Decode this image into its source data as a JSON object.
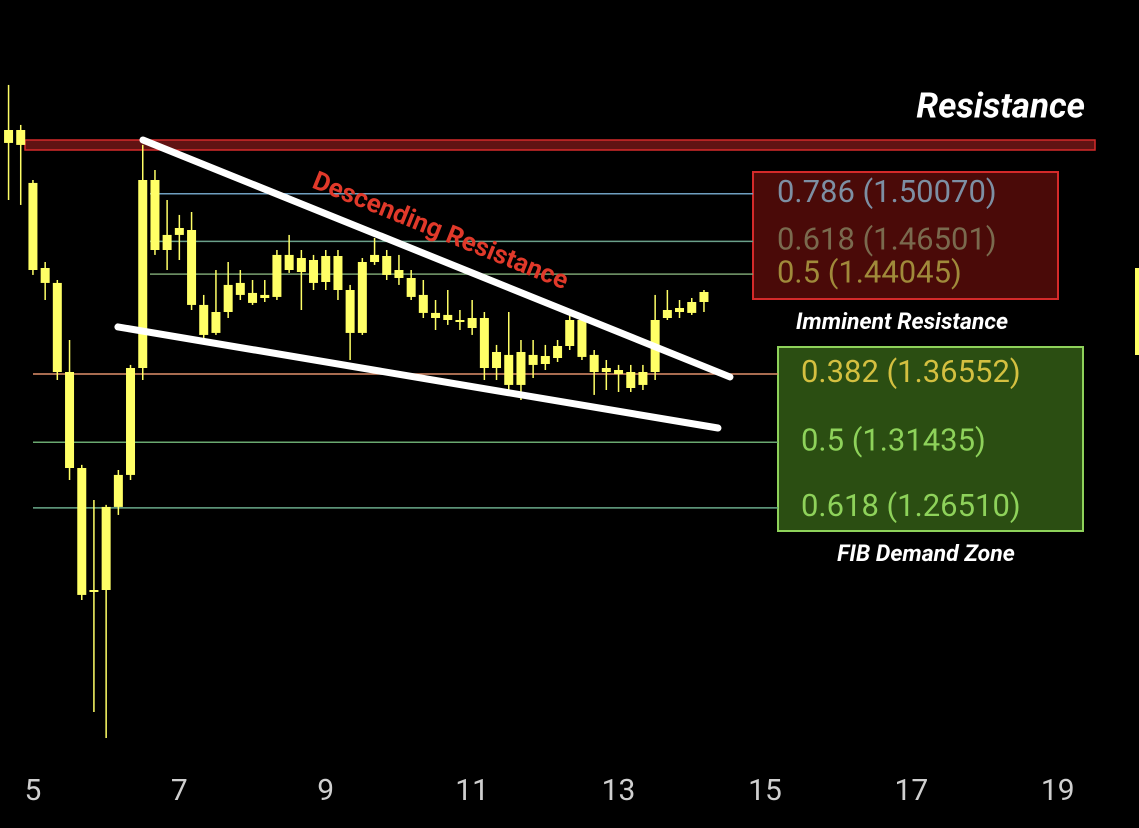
{
  "chart_data": {
    "type": "candlestick",
    "x": [
      4.667,
      4.833,
      5,
      5.167,
      5.333,
      5.5,
      5.667,
      5.833,
      6,
      6.167,
      6.333,
      6.5,
      6.667,
      6.833,
      7,
      7.167,
      7.333,
      7.5,
      7.667,
      7.833,
      8,
      8.167,
      8.333,
      8.5,
      8.667,
      8.833,
      9,
      9.167,
      9.333,
      9.5,
      9.667,
      9.833,
      10,
      10.167,
      10.333,
      10.5,
      10.667,
      10.833,
      11,
      11.167,
      11.333,
      11.5,
      11.667,
      11.833,
      12,
      12.167,
      12.333,
      12.5,
      12.667,
      12.833,
      13,
      13.167,
      13.333,
      13.5,
      13.667,
      13.833,
      14,
      14.167
    ],
    "open": [
      1.5388,
      1.5373,
      1.5088,
      1.445,
      1.4338,
      1.367,
      1.295,
      1.202,
      1.2035,
      1.2658,
      1.2898,
      1.37,
      1.511,
      1.4585,
      1.4698,
      1.4735,
      1.4173,
      1.3963,
      1.412,
      1.4248,
      1.4263,
      1.4225,
      1.4233,
      1.4548,
      1.4525,
      1.451,
      1.4345,
      1.454,
      1.4285,
      1.3963,
      1.4495,
      1.454,
      1.4435,
      1.4375,
      1.4248,
      1.4113,
      1.4098,
      1.406,
      1.4075,
      1.4075,
      1.382,
      1.3798,
      1.3573,
      1.3798,
      1.379,
      1.3775,
      1.3865,
      1.406,
      1.3798,
      1.37,
      1.3685,
      1.367,
      1.3573,
      1.367,
      1.4075,
      1.412,
      1.4113,
      1.4195
    ],
    "high": [
      1.5823,
      1.5523,
      1.511,
      1.4495,
      1.436,
      1.391,
      1.2973,
      1.271,
      1.2673,
      1.2935,
      1.3723,
      1.5373,
      1.5185,
      1.496,
      1.4848,
      1.487,
      1.4248,
      1.4435,
      1.4495,
      1.4435,
      1.436,
      1.436,
      1.4585,
      1.4698,
      1.4585,
      1.4548,
      1.4585,
      1.4585,
      1.4323,
      1.4525,
      1.4675,
      1.4585,
      1.4548,
      1.4435,
      1.436,
      1.421,
      1.4285,
      1.4135,
      1.421,
      1.412,
      1.3873,
      1.412,
      1.391,
      1.391,
      1.3873,
      1.391,
      1.4098,
      1.4098,
      1.3835,
      1.376,
      1.3723,
      1.3723,
      1.3723,
      1.4248,
      1.4285,
      1.421,
      1.4225,
      1.4285
    ],
    "low": [
      1.496,
      1.4923,
      1.4398,
      1.421,
      1.361,
      1.286,
      1.196,
      1.112,
      1.0925,
      1.2598,
      1.286,
      1.361,
      1.4548,
      1.4435,
      1.451,
      1.4135,
      1.391,
      1.3948,
      1.4075,
      1.421,
      1.4173,
      1.4195,
      1.421,
      1.4413,
      1.4135,
      1.4285,
      1.4285,
      1.421,
      1.376,
      1.3948,
      1.4473,
      1.436,
      1.4323,
      1.421,
      1.4075,
      1.3985,
      1.4023,
      1.3985,
      1.3948,
      1.361,
      1.361,
      1.3535,
      1.346,
      1.3625,
      1.3685,
      1.3745,
      1.3835,
      1.376,
      1.3498,
      1.3535,
      1.352,
      1.352,
      1.3535,
      1.361,
      1.406,
      1.4075,
      1.4098,
      1.412
    ],
    "close": [
      1.5485,
      1.5485,
      1.4435,
      1.4338,
      1.367,
      1.295,
      1.1998,
      1.2035,
      1.2658,
      1.2898,
      1.37,
      1.511,
      1.4585,
      1.4698,
      1.475,
      1.4173,
      1.3948,
      1.412,
      1.4323,
      1.4338,
      1.4188,
      1.4248,
      1.4548,
      1.4435,
      1.442,
      1.4338,
      1.454,
      1.4285,
      1.3963,
      1.4495,
      1.4548,
      1.4398,
      1.4375,
      1.4233,
      1.4113,
      1.4075,
      1.406,
      1.4045,
      1.4,
      1.37,
      1.37,
      1.3573,
      1.382,
      1.3723,
      1.373,
      1.3865,
      1.406,
      1.3783,
      1.367,
      1.367,
      1.3655,
      1.355,
      1.367,
      1.406,
      1.4135,
      1.415,
      1.4195,
      1.427
    ],
    "color": "#ffff66",
    "xlim": [
      4.55,
      20.11
    ],
    "xticks": [
      5,
      7,
      9,
      11,
      13,
      15,
      17,
      19
    ],
    "ylim": [
      1.076,
      1.646
    ],
    "resistance": {
      "label": "Resistance",
      "range": [
        1.5335,
        1.541
      ],
      "color": "#d42a2a"
    },
    "trendlines": [
      {
        "label": "Descending Resistance",
        "x": [
          6.503,
          14.522
        ],
        "y": [
          1.541,
          1.3633
        ],
        "color": "#ffffff"
      },
      {
        "x": [
          6.161,
          14.358
        ],
        "y": [
          1.4008,
          1.325
        ],
        "color": "#ffffff"
      }
    ],
    "fib_upper": {
      "label": "Imminent Resistance",
      "levels": [
        {
          "label": "0.786 (1.50070)",
          "value": 1.5007,
          "color": "#7d8fa3",
          "line": "#6f9fc0"
        },
        {
          "label": "0.618 (1.46501)",
          "value": 1.46501,
          "color": "#7a6a4e",
          "line": "#6aa08a"
        },
        {
          "label": "0.5 (1.44045)",
          "value": 1.44045,
          "color": "#a08a3a",
          "line": "#7aa070"
        }
      ]
    },
    "fib_lower": {
      "label": "FIB Demand Zone",
      "levels": [
        {
          "label": "0.382 (1.36552)",
          "value": 1.36552,
          "color": "#d4c040",
          "line": "#e0906a"
        },
        {
          "label": "0.5 (1.31435)",
          "value": 1.31435,
          "color": "#8ed25a",
          "line": "#6aa870"
        },
        {
          "label": "0.618 (1.26510)",
          "value": 1.2651,
          "color": "#8ed25a",
          "line": "#6aa88a"
        }
      ]
    }
  }
}
